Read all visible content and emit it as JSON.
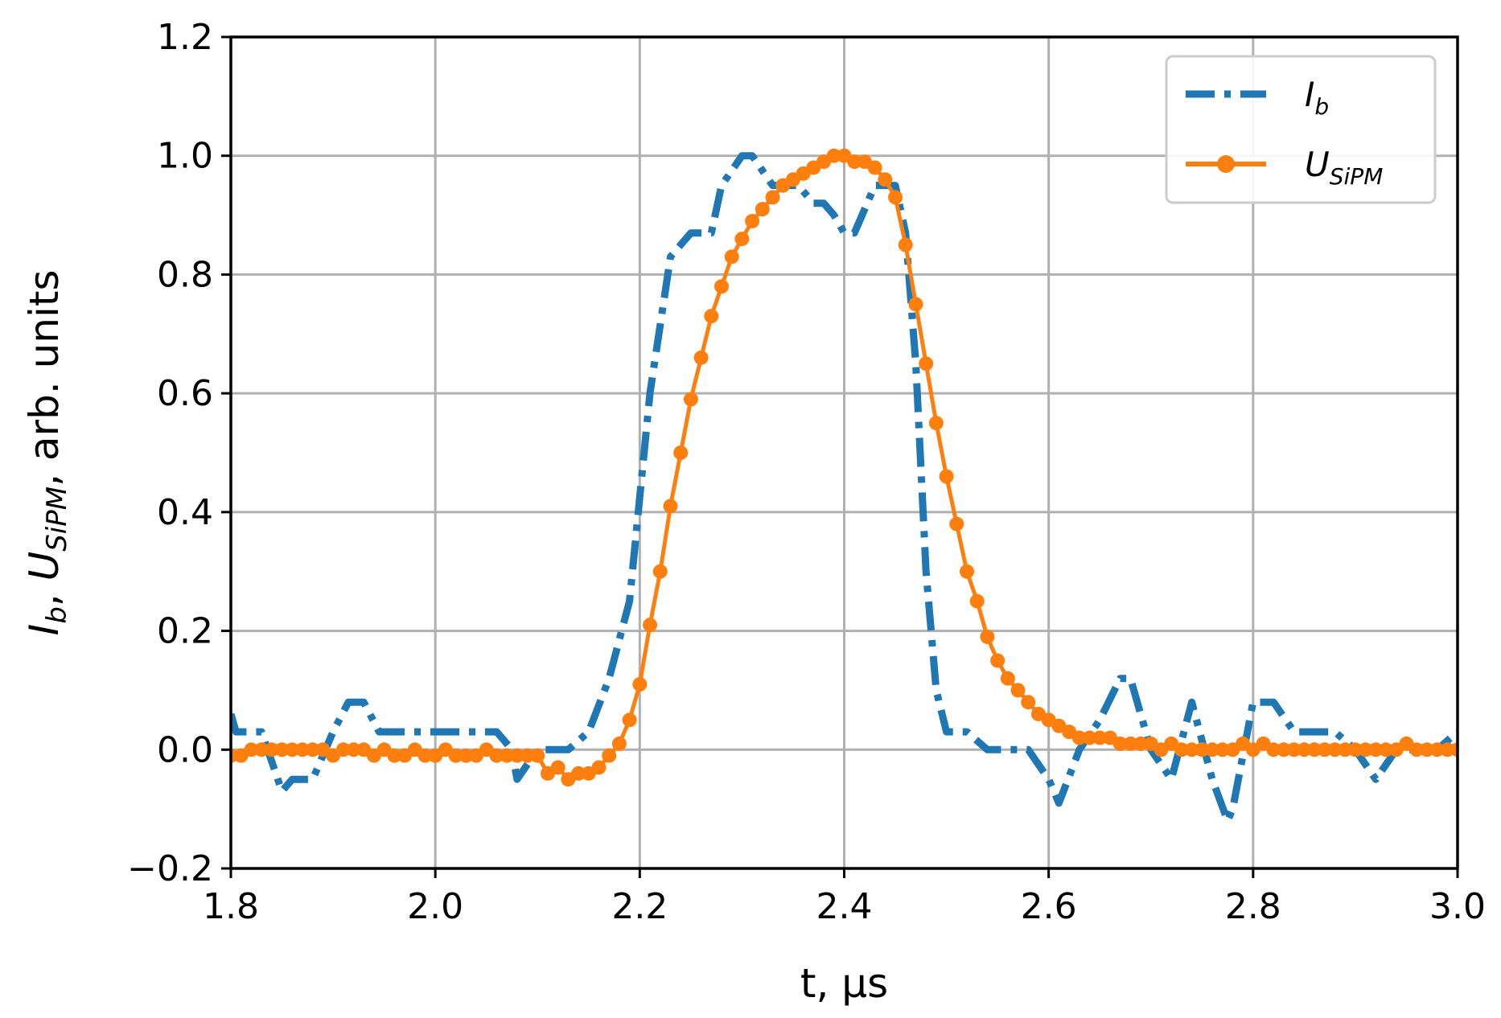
{
  "chart_data": {
    "type": "line",
    "xlabel": "t, μs",
    "ylabel_parts": {
      "a": "I",
      "a_sub": "b",
      "sep1": ", ",
      "b": "U",
      "b_sub": "SiPM",
      "rest": ", arb. units"
    },
    "xlim": [
      1.8,
      3.0
    ],
    "ylim": [
      -0.2,
      1.2
    ],
    "x_ticks": [
      "1.8",
      "2.0",
      "2.2",
      "2.4",
      "2.6",
      "2.8",
      "3.0"
    ],
    "y_ticks": [
      "−0.2",
      "0.0",
      "0.2",
      "0.4",
      "0.6",
      "0.8",
      "1.0",
      "1.2"
    ],
    "x_tick_values": [
      1.8,
      2.0,
      2.2,
      2.4,
      2.6,
      2.8,
      3.0
    ],
    "y_tick_values": [
      -0.2,
      0.0,
      0.2,
      0.4,
      0.6,
      0.8,
      1.0,
      1.2
    ],
    "grid": true,
    "legend_position": "top-right",
    "series": [
      {
        "name": "I",
        "name_sub": "b",
        "style": "dashdot",
        "color": "#1f77b4",
        "x": [
          1.8,
          1.805,
          1.83,
          1.85,
          1.86,
          1.88,
          1.9,
          1.915,
          1.93,
          1.945,
          1.96,
          2.0,
          2.04,
          2.06,
          2.075,
          2.08,
          2.1,
          2.11,
          2.13,
          2.15,
          2.17,
          2.19,
          2.21,
          2.23,
          2.25,
          2.27,
          2.28,
          2.3,
          2.31,
          2.33,
          2.34,
          2.355,
          2.37,
          2.38,
          2.39,
          2.4,
          2.41,
          2.43,
          2.45,
          2.46,
          2.47,
          2.48,
          2.49,
          2.5,
          2.52,
          2.54,
          2.56,
          2.58,
          2.6,
          2.61,
          2.63,
          2.65,
          2.67,
          2.68,
          2.7,
          2.72,
          2.74,
          2.76,
          2.775,
          2.78,
          2.8,
          2.82,
          2.84,
          2.86,
          2.88,
          2.9,
          2.92,
          2.94,
          2.96,
          2.98,
          3.0
        ],
        "y": [
          0.06,
          0.03,
          0.03,
          -0.07,
          -0.05,
          -0.05,
          0.03,
          0.08,
          0.08,
          0.03,
          0.03,
          0.03,
          0.03,
          0.03,
          0.0,
          -0.05,
          0.0,
          0.0,
          0.0,
          0.03,
          0.12,
          0.25,
          0.6,
          0.83,
          0.87,
          0.87,
          0.95,
          1.0,
          1.0,
          0.95,
          0.95,
          0.95,
          0.92,
          0.92,
          0.9,
          0.87,
          0.87,
          0.95,
          0.95,
          0.87,
          0.65,
          0.3,
          0.1,
          0.03,
          0.03,
          0.0,
          0.0,
          0.0,
          -0.05,
          -0.09,
          0.0,
          0.05,
          0.12,
          0.12,
          0.0,
          -0.05,
          0.08,
          -0.05,
          -0.12,
          -0.1,
          0.08,
          0.08,
          0.03,
          0.03,
          0.03,
          0.0,
          -0.05,
          0.0,
          0.0,
          0.0,
          0.03
        ]
      },
      {
        "name": "U",
        "name_sub": "SiPM",
        "style": "solid-markers",
        "color": "#ff7f0e",
        "x": [
          1.8,
          1.81,
          1.82,
          1.83,
          1.84,
          1.85,
          1.86,
          1.87,
          1.88,
          1.89,
          1.9,
          1.91,
          1.92,
          1.93,
          1.94,
          1.95,
          1.96,
          1.97,
          1.98,
          1.99,
          2.0,
          2.01,
          2.02,
          2.03,
          2.04,
          2.05,
          2.06,
          2.07,
          2.08,
          2.09,
          2.1,
          2.11,
          2.12,
          2.13,
          2.14,
          2.15,
          2.16,
          2.17,
          2.18,
          2.19,
          2.2,
          2.21,
          2.22,
          2.23,
          2.24,
          2.25,
          2.26,
          2.27,
          2.28,
          2.29,
          2.3,
          2.31,
          2.32,
          2.33,
          2.34,
          2.35,
          2.36,
          2.37,
          2.38,
          2.39,
          2.4,
          2.41,
          2.42,
          2.43,
          2.44,
          2.45,
          2.46,
          2.47,
          2.48,
          2.49,
          2.5,
          2.51,
          2.52,
          2.53,
          2.54,
          2.55,
          2.56,
          2.57,
          2.58,
          2.59,
          2.6,
          2.61,
          2.62,
          2.63,
          2.64,
          2.65,
          2.66,
          2.67,
          2.68,
          2.69,
          2.7,
          2.71,
          2.72,
          2.73,
          2.74,
          2.75,
          2.76,
          2.77,
          2.78,
          2.79,
          2.8,
          2.81,
          2.82,
          2.83,
          2.84,
          2.85,
          2.86,
          2.87,
          2.88,
          2.89,
          2.9,
          2.91,
          2.92,
          2.93,
          2.94,
          2.95,
          2.96,
          2.97,
          2.98,
          2.99,
          3.0
        ],
        "y": [
          -0.01,
          -0.01,
          0.0,
          0.0,
          0.0,
          0.0,
          0.0,
          0.0,
          0.0,
          0.0,
          -0.01,
          0.0,
          0.0,
          0.0,
          -0.01,
          0.0,
          -0.01,
          -0.01,
          0.0,
          -0.01,
          -0.01,
          0.0,
          -0.01,
          -0.01,
          -0.01,
          0.0,
          -0.01,
          -0.01,
          -0.01,
          -0.01,
          -0.01,
          -0.04,
          -0.03,
          -0.05,
          -0.04,
          -0.04,
          -0.03,
          -0.01,
          0.01,
          0.05,
          0.11,
          0.21,
          0.3,
          0.41,
          0.5,
          0.59,
          0.66,
          0.73,
          0.78,
          0.83,
          0.86,
          0.89,
          0.91,
          0.93,
          0.95,
          0.96,
          0.97,
          0.98,
          0.99,
          1.0,
          1.0,
          0.99,
          0.99,
          0.98,
          0.96,
          0.93,
          0.85,
          0.75,
          0.65,
          0.55,
          0.46,
          0.38,
          0.3,
          0.25,
          0.19,
          0.15,
          0.12,
          0.1,
          0.08,
          0.06,
          0.05,
          0.04,
          0.03,
          0.02,
          0.02,
          0.02,
          0.02,
          0.01,
          0.01,
          0.01,
          0.01,
          0.0,
          0.01,
          0.0,
          0.0,
          0.0,
          0.0,
          0.0,
          0.0,
          0.01,
          0.0,
          0.01,
          0.0,
          0.0,
          0.0,
          0.0,
          0.0,
          0.0,
          0.0,
          0.0,
          0.0,
          0.0,
          0.0,
          0.0,
          0.0,
          0.01,
          0.0,
          0.0,
          0.0,
          0.0,
          0.0
        ]
      }
    ]
  }
}
